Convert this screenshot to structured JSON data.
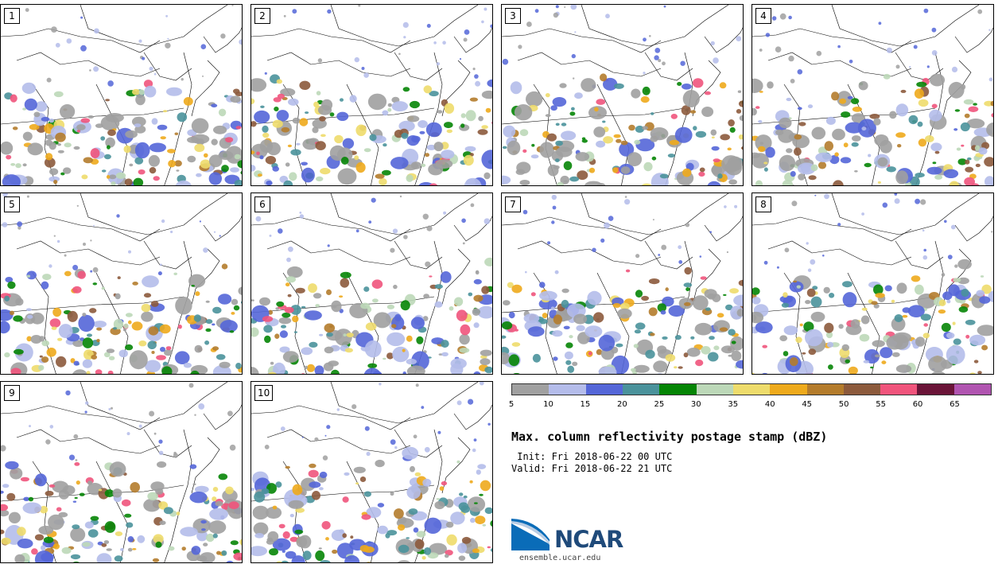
{
  "panels": [
    {
      "label": "1"
    },
    {
      "label": "2"
    },
    {
      "label": "3"
    },
    {
      "label": "4"
    },
    {
      "label": "5"
    },
    {
      "label": "6"
    },
    {
      "label": "7"
    },
    {
      "label": "8"
    },
    {
      "label": "9"
    },
    {
      "label": "10"
    }
  ],
  "colorbar": {
    "colors": [
      "#a0a0a0",
      "#b4bcea",
      "#5466d8",
      "#4a929b",
      "#058505",
      "#bcd8b8",
      "#eedc6c",
      "#eeaa1c",
      "#b47c2c",
      "#8c5a3c",
      "#f0547c",
      "#6a1438",
      "#b054b0"
    ],
    "ticks": [
      "5",
      "10",
      "15",
      "20",
      "25",
      "30",
      "35",
      "40",
      "45",
      "50",
      "55",
      "60",
      "65"
    ]
  },
  "title": "Max. column reflectivity postage stamp (dBZ)",
  "init_line": " Init: Fri 2018-06-22 00 UTC",
  "valid_line": "Valid: Fri 2018-06-22 21 UTC",
  "logo": {
    "name": "NCAR",
    "url": "ensemble.ucar.edu"
  }
}
